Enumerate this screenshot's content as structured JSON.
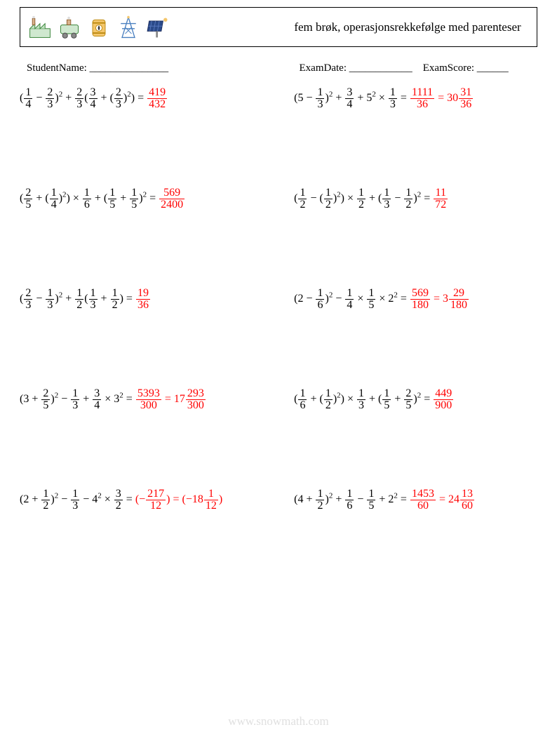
{
  "header": {
    "title": "fem brøk, operasjonsrekkefølge med parenteser"
  },
  "meta": {
    "student_label": "StudentName: _______________",
    "date_label": "ExamDate: ____________",
    "score_label": "ExamScore: ______"
  },
  "colors": {
    "answer": "#ff0000",
    "text": "#000000",
    "watermark": "#e0e0e0"
  },
  "fontsizes": {
    "title": 17,
    "meta": 15,
    "expr": 16,
    "sup": 11
  },
  "problems": [
    {
      "lhs": [
        [
          "(",
          [
            "f",
            "1",
            "4"
          ],
          " − ",
          [
            "f",
            "2",
            "3"
          ],
          ")",
          [
            "sup",
            "2"
          ],
          " + ",
          [
            "f",
            "2",
            "3"
          ],
          "(",
          [
            "f",
            "3",
            "4"
          ],
          " + (",
          [
            "f",
            "2",
            "3"
          ],
          ")",
          [
            "sup",
            "2"
          ],
          ") = "
        ]
      ],
      "ans": [
        [
          [
            "f",
            "419",
            "432"
          ]
        ]
      ]
    },
    {
      "lhs": [
        [
          "(5 − ",
          [
            "f",
            "1",
            "3"
          ],
          ")",
          [
            "sup",
            "2"
          ],
          " + ",
          [
            "f",
            "3",
            "4"
          ],
          " + 5",
          [
            "sup",
            "2"
          ],
          " × ",
          [
            "f",
            "1",
            "3"
          ],
          " = "
        ]
      ],
      "ans": [
        [
          [
            "f",
            "1111",
            "36"
          ],
          " = 30",
          [
            "f",
            "31",
            "36"
          ]
        ]
      ]
    },
    {
      "lhs": [
        [
          "(",
          [
            "f",
            "2",
            "5"
          ],
          " + (",
          [
            "f",
            "1",
            "4"
          ],
          ")",
          [
            "sup",
            "2"
          ],
          ") × ",
          [
            "f",
            "1",
            "6"
          ],
          " + (",
          [
            "f",
            "1",
            "5"
          ],
          " + ",
          [
            "f",
            "1",
            "5"
          ],
          ")",
          [
            "sup",
            "2"
          ],
          " = "
        ]
      ],
      "ans": [
        [
          [
            "f",
            "569",
            "2400"
          ]
        ]
      ]
    },
    {
      "lhs": [
        [
          "(",
          [
            "f",
            "1",
            "2"
          ],
          " − (",
          [
            "f",
            "1",
            "2"
          ],
          ")",
          [
            "sup",
            "2"
          ],
          ") × ",
          [
            "f",
            "1",
            "2"
          ],
          " + (",
          [
            "f",
            "1",
            "3"
          ],
          " − ",
          [
            "f",
            "1",
            "2"
          ],
          ")",
          [
            "sup",
            "2"
          ],
          " = "
        ]
      ],
      "ans": [
        [
          [
            "f",
            "11",
            "72"
          ]
        ]
      ]
    },
    {
      "lhs": [
        [
          "(",
          [
            "f",
            "2",
            "3"
          ],
          " − ",
          [
            "f",
            "1",
            "3"
          ],
          ")",
          [
            "sup",
            "2"
          ],
          " + ",
          [
            "f",
            "1",
            "2"
          ],
          "(",
          [
            "f",
            "1",
            "3"
          ],
          " + ",
          [
            "f",
            "1",
            "2"
          ],
          ") = "
        ]
      ],
      "ans": [
        [
          [
            "f",
            "19",
            "36"
          ]
        ]
      ]
    },
    {
      "lhs": [
        [
          "(2 − ",
          [
            "f",
            "1",
            "6"
          ],
          ")",
          [
            "sup",
            "2"
          ],
          " − ",
          [
            "f",
            "1",
            "4"
          ],
          " × ",
          [
            "f",
            "1",
            "5"
          ],
          " × 2",
          [
            "sup",
            "2"
          ],
          " = "
        ]
      ],
      "ans": [
        [
          [
            "f",
            "569",
            "180"
          ],
          " = 3",
          [
            "f",
            "29",
            "180"
          ]
        ]
      ]
    },
    {
      "lhs": [
        [
          "(3 + ",
          [
            "f",
            "2",
            "5"
          ],
          ")",
          [
            "sup",
            "2"
          ],
          " − ",
          [
            "f",
            "1",
            "3"
          ],
          " + ",
          [
            "f",
            "3",
            "4"
          ],
          " × 3",
          [
            "sup",
            "2"
          ],
          " = "
        ]
      ],
      "ans": [
        [
          [
            "f",
            "5393",
            "300"
          ],
          " = 17",
          [
            "f",
            "293",
            "300"
          ]
        ]
      ]
    },
    {
      "lhs": [
        [
          "(",
          [
            "f",
            "1",
            "6"
          ],
          " + (",
          [
            "f",
            "1",
            "2"
          ],
          ")",
          [
            "sup",
            "2"
          ],
          ") × ",
          [
            "f",
            "1",
            "3"
          ],
          " + (",
          [
            "f",
            "1",
            "5"
          ],
          " + ",
          [
            "f",
            "2",
            "5"
          ],
          ")",
          [
            "sup",
            "2"
          ],
          " = "
        ]
      ],
      "ans": [
        [
          [
            "f",
            "449",
            "900"
          ]
        ]
      ]
    },
    {
      "lhs": [
        [
          "(2 + ",
          [
            "f",
            "1",
            "2"
          ],
          ")",
          [
            "sup",
            "2"
          ],
          " − ",
          [
            "f",
            "1",
            "3"
          ],
          " − 4",
          [
            "sup",
            "2"
          ],
          " × ",
          [
            "f",
            "3",
            "2"
          ],
          " = "
        ]
      ],
      "ans": [
        [
          "(−",
          [
            "f",
            "217",
            "12"
          ],
          ") = (−18",
          [
            "f",
            "1",
            "12"
          ],
          ")"
        ]
      ]
    },
    {
      "lhs": [
        [
          "(4 + ",
          [
            "f",
            "1",
            "2"
          ],
          ")",
          [
            "sup",
            "2"
          ],
          " + ",
          [
            "f",
            "1",
            "6"
          ],
          " − ",
          [
            "f",
            "1",
            "5"
          ],
          " + 2",
          [
            "sup",
            "2"
          ],
          " = "
        ]
      ],
      "ans": [
        [
          [
            "f",
            "1453",
            "60"
          ],
          " = 24",
          [
            "f",
            "13",
            "60"
          ]
        ]
      ]
    }
  ],
  "watermark": "www.snowmath.com"
}
